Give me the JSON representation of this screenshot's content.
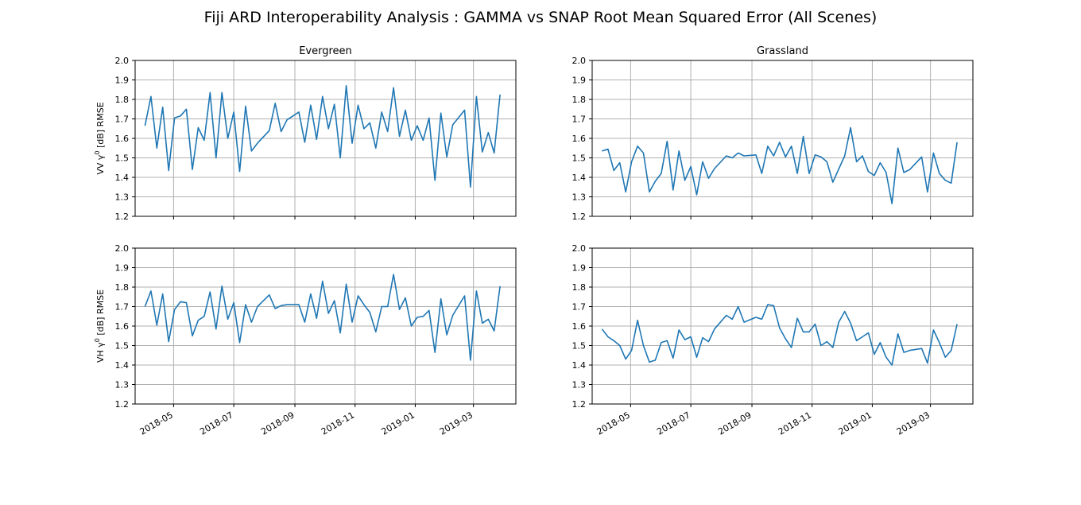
{
  "figure": {
    "title": "Fiji ARD Interoperability Analysis : GAMMA vs SNAP Root Mean Squared Error (All Scenes)"
  },
  "colors": {
    "line": "#1f77b4",
    "grid": "#b0b0b0",
    "axes": "#000000"
  },
  "chart_data": [
    {
      "type": "line",
      "title": "Evergreen",
      "ylabel_prefix": "VV γ",
      "ylabel_sup": "0",
      "ylabel_suffix": " [dB] RMSE",
      "ylim": [
        1.2,
        2.0
      ],
      "xlim": [
        "2018-03-23",
        "2019-04-13"
      ],
      "yticks": [
        "1.2",
        "1.3",
        "1.4",
        "1.5",
        "1.6",
        "1.7",
        "1.8",
        "1.9",
        "2.0"
      ],
      "xticks": [],
      "grid": true,
      "x": [
        "2018-04-02",
        "2018-04-08",
        "2018-04-14",
        "2018-04-20",
        "2018-04-26",
        "2018-05-02",
        "2018-05-08",
        "2018-05-14",
        "2018-05-20",
        "2018-05-26",
        "2018-06-01",
        "2018-06-07",
        "2018-06-13",
        "2018-06-19",
        "2018-06-25",
        "2018-07-01",
        "2018-07-07",
        "2018-07-13",
        "2018-07-19",
        "2018-07-25",
        "2018-08-06",
        "2018-08-12",
        "2018-08-18",
        "2018-08-24",
        "2018-09-05",
        "2018-09-11",
        "2018-09-17",
        "2018-09-23",
        "2018-09-29",
        "2018-10-05",
        "2018-10-11",
        "2018-10-17",
        "2018-10-23",
        "2018-10-29",
        "2018-11-04",
        "2018-11-10",
        "2018-11-16",
        "2018-11-22",
        "2018-11-28",
        "2018-12-04",
        "2018-12-10",
        "2018-12-16",
        "2018-12-22",
        "2018-12-28",
        "2019-01-03",
        "2019-01-09",
        "2019-01-15",
        "2019-01-21",
        "2019-01-27",
        "2019-02-02",
        "2019-02-08",
        "2019-02-20",
        "2019-02-26",
        "2019-03-04",
        "2019-03-10",
        "2019-03-16",
        "2019-03-22",
        "2019-03-28"
      ],
      "values": [
        1.665,
        1.815,
        1.55,
        1.76,
        1.435,
        1.705,
        1.715,
        1.75,
        1.44,
        1.655,
        1.59,
        1.835,
        1.5,
        1.835,
        1.6,
        1.735,
        1.43,
        1.765,
        1.535,
        1.575,
        1.64,
        1.78,
        1.635,
        1.695,
        1.735,
        1.58,
        1.77,
        1.595,
        1.815,
        1.65,
        1.775,
        1.5,
        1.87,
        1.575,
        1.77,
        1.65,
        1.68,
        1.55,
        1.735,
        1.635,
        1.86,
        1.61,
        1.745,
        1.59,
        1.665,
        1.59,
        1.705,
        1.385,
        1.73,
        1.505,
        1.67,
        1.745,
        1.35,
        1.815,
        1.53,
        1.63,
        1.525,
        1.825
      ]
    },
    {
      "type": "line",
      "title": "Grassland",
      "ylim": [
        1.2,
        2.0
      ],
      "xlim": [
        "2018-03-23",
        "2019-04-13"
      ],
      "yticks": [
        "1.2",
        "1.3",
        "1.4",
        "1.5",
        "1.6",
        "1.7",
        "1.8",
        "1.9",
        "2.0"
      ],
      "xticks": [],
      "grid": true,
      "x": [
        "2018-04-02",
        "2018-04-08",
        "2018-04-14",
        "2018-04-20",
        "2018-04-26",
        "2018-05-02",
        "2018-05-08",
        "2018-05-14",
        "2018-05-20",
        "2018-05-26",
        "2018-06-01",
        "2018-06-07",
        "2018-06-13",
        "2018-06-19",
        "2018-06-25",
        "2018-07-01",
        "2018-07-07",
        "2018-07-13",
        "2018-07-19",
        "2018-07-25",
        "2018-08-06",
        "2018-08-12",
        "2018-08-18",
        "2018-08-24",
        "2018-09-05",
        "2018-09-11",
        "2018-09-17",
        "2018-09-23",
        "2018-09-29",
        "2018-10-05",
        "2018-10-11",
        "2018-10-17",
        "2018-10-23",
        "2018-10-29",
        "2018-11-04",
        "2018-11-10",
        "2018-11-16",
        "2018-11-22",
        "2018-12-04",
        "2018-12-10",
        "2018-12-16",
        "2018-12-22",
        "2018-12-28",
        "2019-01-03",
        "2019-01-09",
        "2019-01-15",
        "2019-01-21",
        "2019-01-27",
        "2019-02-02",
        "2019-02-08",
        "2019-02-20",
        "2019-02-26",
        "2019-03-04",
        "2019-03-10",
        "2019-03-16",
        "2019-03-22",
        "2019-03-28"
      ],
      "values": [
        1.535,
        1.545,
        1.435,
        1.475,
        1.325,
        1.48,
        1.56,
        1.525,
        1.325,
        1.38,
        1.42,
        1.585,
        1.335,
        1.535,
        1.385,
        1.455,
        1.31,
        1.48,
        1.395,
        1.445,
        1.51,
        1.5,
        1.525,
        1.51,
        1.515,
        1.42,
        1.56,
        1.51,
        1.58,
        1.505,
        1.56,
        1.42,
        1.61,
        1.42,
        1.515,
        1.505,
        1.48,
        1.375,
        1.51,
        1.655,
        1.48,
        1.51,
        1.43,
        1.41,
        1.475,
        1.425,
        1.265,
        1.55,
        1.425,
        1.44,
        1.505,
        1.325,
        1.525,
        1.42,
        1.385,
        1.37,
        1.58
      ]
    },
    {
      "type": "line",
      "title": "",
      "ylabel_prefix": "VH γ",
      "ylabel_sup": "0",
      "ylabel_suffix": " [dB] RMSE",
      "ylim": [
        1.2,
        2.0
      ],
      "xlim": [
        "2018-03-23",
        "2019-04-13"
      ],
      "yticks": [
        "1.2",
        "1.3",
        "1.4",
        "1.5",
        "1.6",
        "1.7",
        "1.8",
        "1.9",
        "2.0"
      ],
      "xticks": [
        "2018-05",
        "2018-07",
        "2018-09",
        "2018-11",
        "2019-01",
        "2019-03"
      ],
      "grid": true,
      "x": [
        "2018-04-02",
        "2018-04-08",
        "2018-04-14",
        "2018-04-20",
        "2018-04-26",
        "2018-05-02",
        "2018-05-08",
        "2018-05-14",
        "2018-05-20",
        "2018-05-26",
        "2018-06-01",
        "2018-06-07",
        "2018-06-13",
        "2018-06-19",
        "2018-06-25",
        "2018-07-01",
        "2018-07-07",
        "2018-07-13",
        "2018-07-19",
        "2018-07-25",
        "2018-08-06",
        "2018-08-12",
        "2018-08-18",
        "2018-08-24",
        "2018-09-05",
        "2018-09-11",
        "2018-09-17",
        "2018-09-23",
        "2018-09-29",
        "2018-10-05",
        "2018-10-11",
        "2018-10-17",
        "2018-10-23",
        "2018-10-29",
        "2018-11-04",
        "2018-11-10",
        "2018-11-16",
        "2018-11-22",
        "2018-11-28",
        "2018-12-04",
        "2018-12-10",
        "2018-12-16",
        "2018-12-22",
        "2018-12-28",
        "2019-01-03",
        "2019-01-09",
        "2019-01-15",
        "2019-01-21",
        "2019-01-27",
        "2019-02-02",
        "2019-02-08",
        "2019-02-20",
        "2019-02-26",
        "2019-03-04",
        "2019-03-10",
        "2019-03-16",
        "2019-03-22",
        "2019-03-28"
      ],
      "values": [
        1.7,
        1.78,
        1.605,
        1.765,
        1.52,
        1.685,
        1.725,
        1.72,
        1.55,
        1.63,
        1.65,
        1.775,
        1.585,
        1.805,
        1.635,
        1.72,
        1.515,
        1.71,
        1.62,
        1.7,
        1.76,
        1.69,
        1.705,
        1.71,
        1.71,
        1.62,
        1.765,
        1.64,
        1.83,
        1.665,
        1.73,
        1.565,
        1.815,
        1.62,
        1.755,
        1.71,
        1.67,
        1.57,
        1.7,
        1.7,
        1.865,
        1.685,
        1.745,
        1.6,
        1.645,
        1.65,
        1.68,
        1.465,
        1.74,
        1.555,
        1.655,
        1.755,
        1.425,
        1.78,
        1.615,
        1.635,
        1.575,
        1.805
      ]
    },
    {
      "type": "line",
      "title": "",
      "ylim": [
        1.2,
        2.0
      ],
      "xlim": [
        "2018-03-23",
        "2019-04-13"
      ],
      "yticks": [
        "1.2",
        "1.3",
        "1.4",
        "1.5",
        "1.6",
        "1.7",
        "1.8",
        "1.9",
        "2.0"
      ],
      "xticks": [
        "2018-05",
        "2018-07",
        "2018-09",
        "2018-11",
        "2019-01",
        "2019-03"
      ],
      "grid": true,
      "x": [
        "2018-04-02",
        "2018-04-08",
        "2018-04-14",
        "2018-04-20",
        "2018-04-26",
        "2018-05-02",
        "2018-05-08",
        "2018-05-14",
        "2018-05-20",
        "2018-05-26",
        "2018-06-01",
        "2018-06-07",
        "2018-06-13",
        "2018-06-19",
        "2018-06-25",
        "2018-07-01",
        "2018-07-07",
        "2018-07-13",
        "2018-07-19",
        "2018-07-25",
        "2018-08-06",
        "2018-08-12",
        "2018-08-18",
        "2018-08-24",
        "2018-09-05",
        "2018-09-11",
        "2018-09-17",
        "2018-09-23",
        "2018-09-29",
        "2018-10-05",
        "2018-10-11",
        "2018-10-17",
        "2018-10-23",
        "2018-10-29",
        "2018-11-04",
        "2018-11-10",
        "2018-11-16",
        "2018-11-22",
        "2018-11-28",
        "2018-12-04",
        "2018-12-10",
        "2018-12-16",
        "2018-12-22",
        "2018-12-28",
        "2019-01-03",
        "2019-01-09",
        "2019-01-15",
        "2019-01-21",
        "2019-01-27",
        "2019-02-02",
        "2019-02-08",
        "2019-02-20",
        "2019-02-26",
        "2019-03-04",
        "2019-03-10",
        "2019-03-16",
        "2019-03-22",
        "2019-03-28"
      ],
      "values": [
        1.585,
        1.545,
        1.525,
        1.5,
        1.43,
        1.475,
        1.63,
        1.5,
        1.415,
        1.425,
        1.515,
        1.525,
        1.435,
        1.58,
        1.53,
        1.545,
        1.44,
        1.54,
        1.52,
        1.585,
        1.655,
        1.635,
        1.7,
        1.62,
        1.645,
        1.635,
        1.71,
        1.705,
        1.59,
        1.535,
        1.49,
        1.64,
        1.57,
        1.57,
        1.61,
        1.5,
        1.52,
        1.49,
        1.62,
        1.675,
        1.615,
        1.525,
        1.545,
        1.565,
        1.455,
        1.515,
        1.44,
        1.4,
        1.56,
        1.465,
        1.475,
        1.485,
        1.41,
        1.58,
        1.515,
        1.44,
        1.475,
        1.61
      ]
    }
  ]
}
